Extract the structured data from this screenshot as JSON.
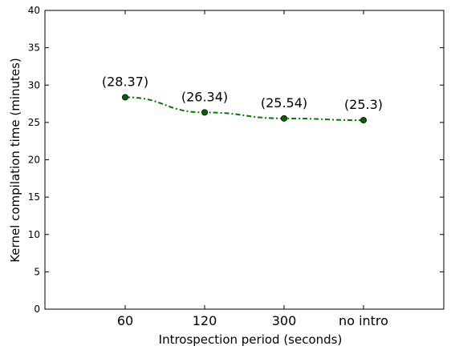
{
  "chart_data": {
    "type": "line",
    "title": "",
    "xlabel": "Introspection period (seconds)",
    "ylabel": "Kernel compilation time (minutes)",
    "categories": [
      "60",
      "120",
      "300",
      "no intro"
    ],
    "ylim": [
      0,
      40
    ],
    "yticks": [
      0,
      5,
      10,
      15,
      20,
      25,
      30,
      35,
      40
    ],
    "grid": false,
    "legend": "none",
    "series": [
      {
        "values": [
          28.37,
          26.34,
          25.54,
          25.3
        ],
        "labels": [
          "(28.37)",
          "(26.34)",
          "(25.54)",
          "(25.3)"
        ],
        "color": "#007a00",
        "marker_color": "#006400",
        "line_style": "dash-dot"
      }
    ]
  }
}
